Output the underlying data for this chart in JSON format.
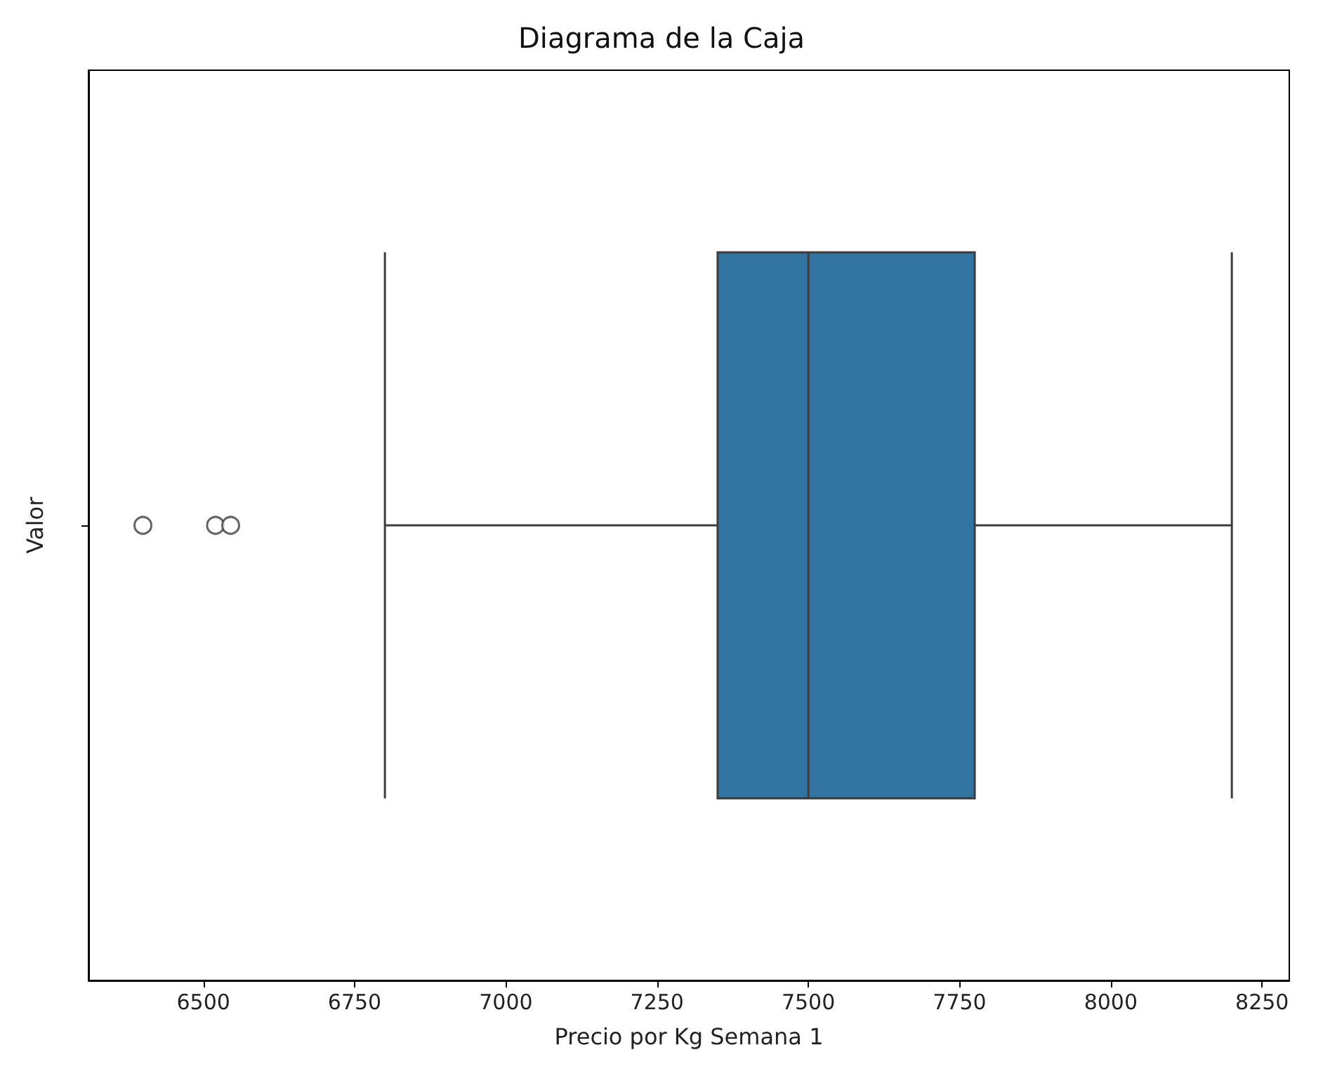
{
  "chart_data": {
    "type": "box",
    "title": "Diagrama de la Caja",
    "xlabel": "Precio por Kg Semana 1",
    "ylabel": "Valor",
    "orientation": "horizontal",
    "categories": [
      null
    ],
    "series": [
      {
        "color": "#3274a1",
        "boxes": [
          {
            "low": 6800,
            "q1": 7350,
            "median": 7500,
            "q3": 7775,
            "high": 8200,
            "outliers": [
              6400,
              6520,
              6545
            ]
          }
        ]
      }
    ],
    "xlim": [
      6310,
      8295
    ],
    "xticks": [
      6500,
      6750,
      7000,
      7250,
      7500,
      7750,
      8000,
      8250
    ],
    "grid": false
  }
}
